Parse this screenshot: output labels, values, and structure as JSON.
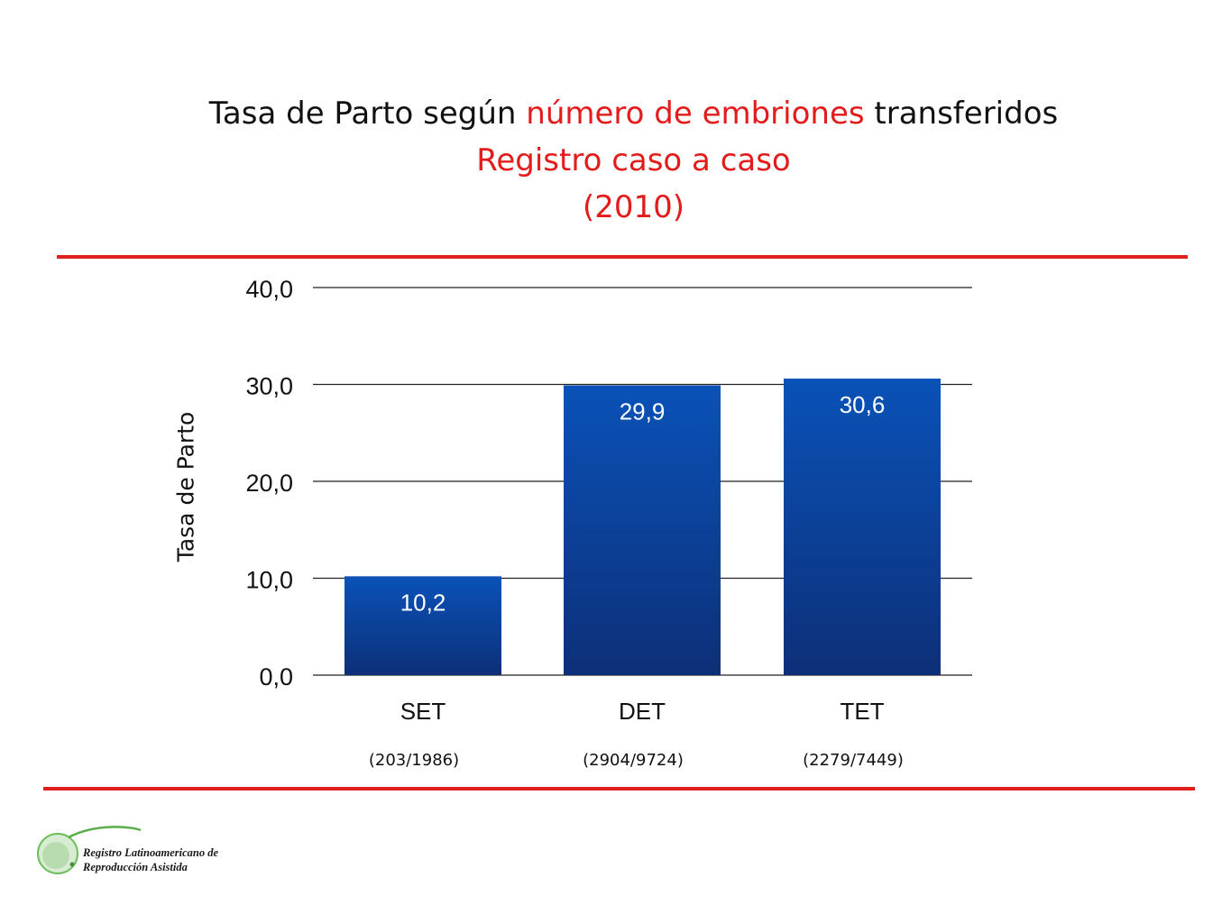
{
  "title": {
    "line1_a": "Tasa de Parto según ",
    "line1_b": "número de embriones",
    "line1_c": " transferidos",
    "line2": "Registro caso a caso",
    "line3": "(2010)"
  },
  "colors": {
    "accent_red": "#e0201e",
    "bar_top": "#0a4fb5",
    "bar_bottom": "#0c2f7a"
  },
  "chart_data": {
    "type": "bar",
    "categories": [
      "SET",
      "DET",
      "TET"
    ],
    "values": [
      10.2,
      29.9,
      30.6
    ],
    "value_labels": [
      "10,2",
      "29,9",
      "30,6"
    ],
    "counts": [
      "(203/1986)",
      "(2904/9724)",
      "(2279/7449)"
    ],
    "ylabel": "Tasa de Parto",
    "ylim": [
      0,
      40
    ],
    "yticks": [
      0,
      10,
      20,
      30,
      40
    ],
    "ytick_labels": [
      "0,0",
      "10,0",
      "20,0",
      "30,0",
      "40,0"
    ],
    "grid": true
  },
  "logo": {
    "line1": "Registro Latinoamericano de",
    "line2": "Reproducción Asistida"
  }
}
